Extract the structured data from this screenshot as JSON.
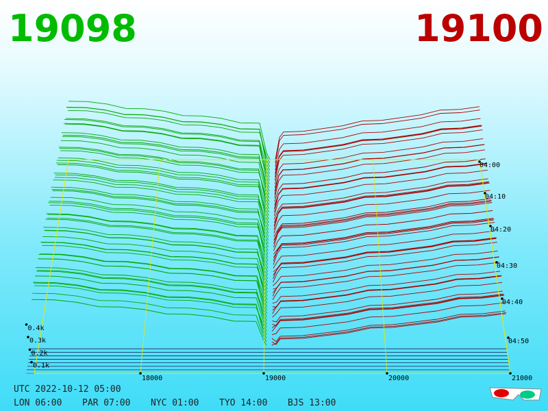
{
  "bid": {
    "price": "19098"
  },
  "ask": {
    "price": "19100"
  },
  "price_axis": {
    "ticks": [
      18000,
      19000,
      20000,
      21000
    ]
  },
  "depth_axis": {
    "ticks": [
      {
        "value": 100,
        "label": "0.1k"
      },
      {
        "value": 200,
        "label": "0.2k"
      },
      {
        "value": 300,
        "label": "0.3k"
      },
      {
        "value": 400,
        "label": "0.4k"
      }
    ]
  },
  "time_axis": {
    "ticks": [
      "04:00",
      "04:10",
      "04:20",
      "04:30",
      "04:40",
      "04:50"
    ]
  },
  "clock": {
    "utc": "UTC 2022-10-12 05:00",
    "zones": [
      "LON 06:00",
      "PAR 07:00",
      "NYC 01:00",
      "TYO 14:00",
      "BJS 13:00"
    ]
  }
}
